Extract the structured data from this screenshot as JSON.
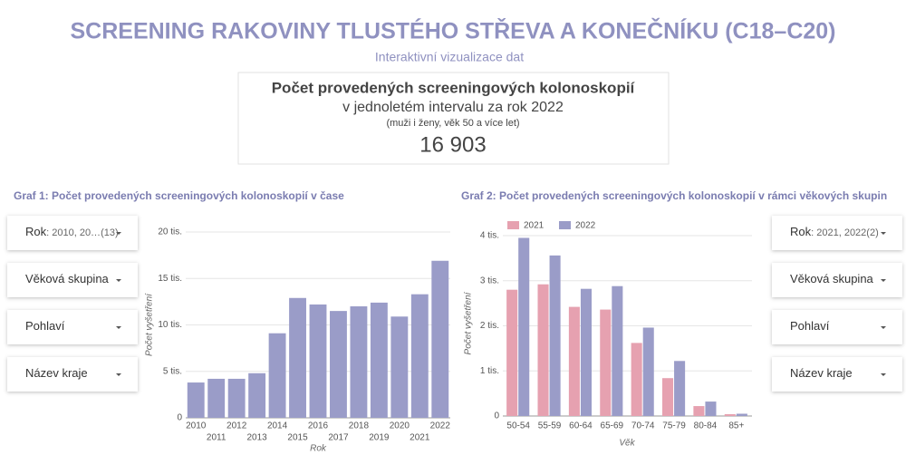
{
  "header": {
    "title": "SCREENING RAKOVINY TLUSTÉHO STŘEVA A KONEČNÍKU (C18–C20)",
    "subtitle": "Interaktivní vizualizace dat"
  },
  "kpi": {
    "title": "Počet provedených screeningových kolonoskopií",
    "line2": "v jednoletém intervalu za rok 2022",
    "line3": "(muži i ženy, věk 50 a více let)",
    "value": "16 903"
  },
  "filters_left": [
    {
      "label": "Rok",
      "value": ": 2010, 20…",
      "count": "(13)"
    },
    {
      "label": "Věková skupina"
    },
    {
      "label": "Pohlaví"
    },
    {
      "label": "Název kraje"
    }
  ],
  "filters_right": [
    {
      "label": "Rok",
      "value": ": 2021, 2022",
      "count": "(2)"
    },
    {
      "label": "Věková skupina"
    },
    {
      "label": "Pohlaví"
    },
    {
      "label": "Název kraje"
    }
  ],
  "chart_data": [
    {
      "type": "bar",
      "title": "Graf 1: Počet provedených screeningových kolonoskopií v čase",
      "x_label": "Rok",
      "y_label": "Počet vyšetření",
      "categories": [
        "2010",
        "2011",
        "2012",
        "2013",
        "2014",
        "2015",
        "2016",
        "2017",
        "2018",
        "2019",
        "2020",
        "2021",
        "2022"
      ],
      "values": [
        3800,
        4200,
        4200,
        4800,
        9100,
        12900,
        12200,
        11500,
        12000,
        12400,
        10900,
        13300,
        16903
      ],
      "color": "#9a9cc8",
      "ylim": [
        0,
        20000
      ],
      "yticks": [
        0,
        {
          "value": 5000,
          "label": "5 tis."
        },
        {
          "value": 10000,
          "label": "10 tis."
        },
        {
          "value": 15000,
          "label": "15 tis."
        },
        {
          "value": 20000,
          "label": "20 tis."
        }
      ],
      "grid": true
    },
    {
      "type": "grouped_bar",
      "title": "Graf 2: Počet provedených screeningových kolonoskopií v rámci věkových skupin",
      "x_label": "Věk",
      "y_label": "Počet vyšetření",
      "categories": [
        "50-54",
        "55-59",
        "60-64",
        "65-69",
        "70-74",
        "75-79",
        "80-84",
        "85+"
      ],
      "series": [
        {
          "name": "2021",
          "color": "#e6a1b0",
          "values": [
            2800,
            2920,
            2420,
            2360,
            1620,
            840,
            220,
            40
          ]
        },
        {
          "name": "2022",
          "color": "#9a9cc8",
          "values": [
            3950,
            3560,
            2820,
            2880,
            1960,
            1220,
            320,
            50
          ]
        }
      ],
      "ylim": [
        0,
        4100
      ],
      "yticks": [
        0,
        {
          "value": 1000,
          "label": "1 tis."
        },
        {
          "value": 2000,
          "label": "2 tis."
        },
        {
          "value": 3000,
          "label": "3 tis."
        },
        {
          "value": 4000,
          "label": "4 tis."
        }
      ],
      "grid": true,
      "legend": "top-left"
    }
  ]
}
